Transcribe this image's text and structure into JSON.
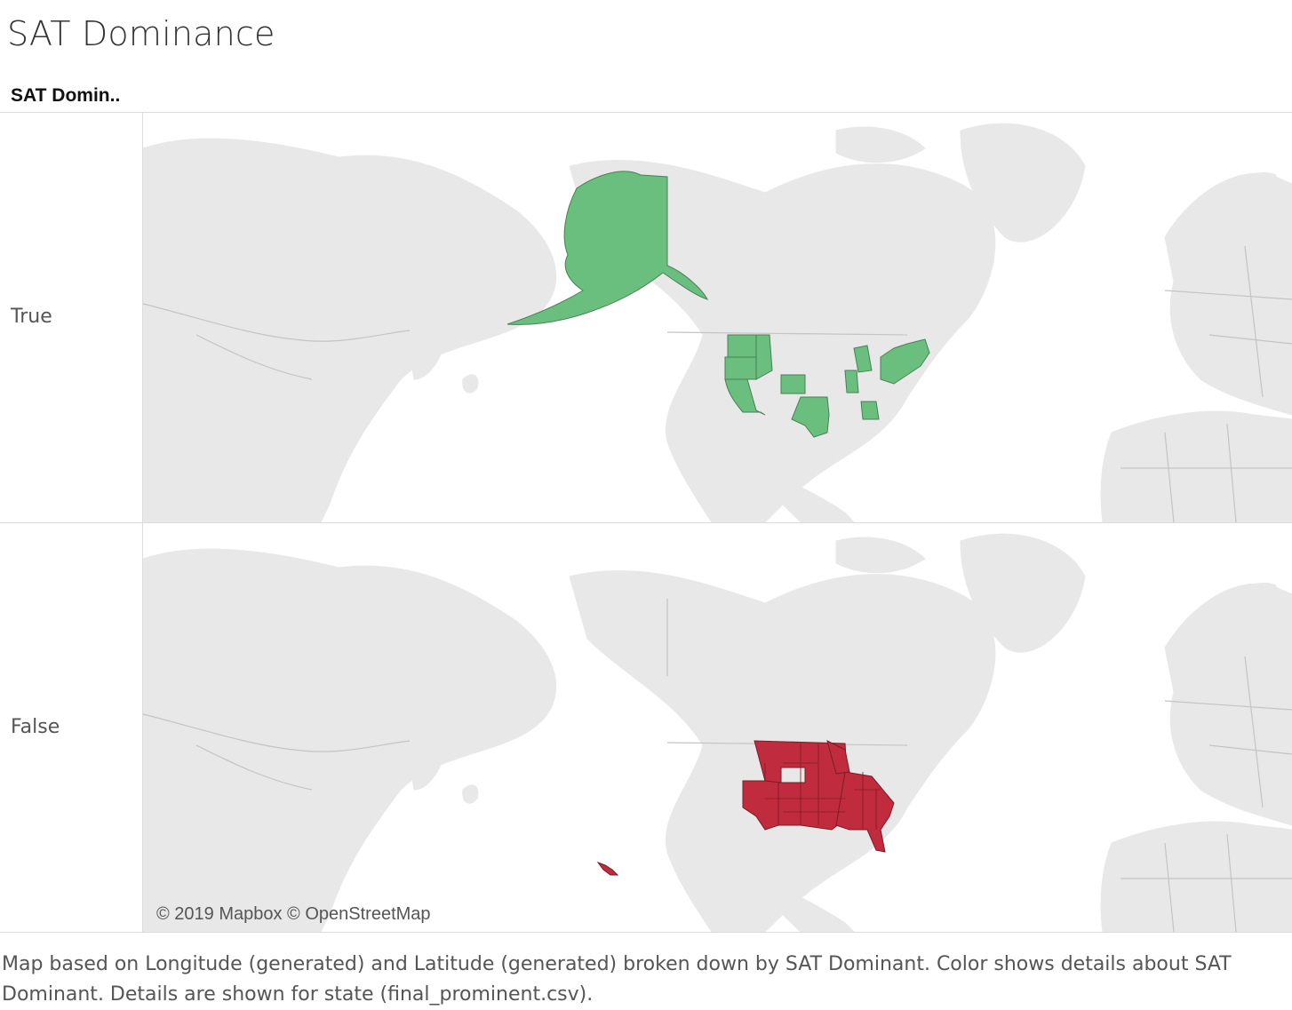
{
  "title": "SAT Dominance",
  "header": {
    "field_label": "SAT Domin.."
  },
  "rows": [
    {
      "label": "True",
      "fill": "#6bbf7e"
    },
    {
      "label": "False",
      "fill": "#c02c3d"
    }
  ],
  "map": {
    "attribution": "© 2019 Mapbox © OpenStreetMap",
    "land_color": "#e8e8e8",
    "border_color": "#bdbdbd"
  },
  "caption": "Map based on Longitude (generated) and Latitude (generated) broken down by SAT Dominant.  Color shows details about SAT Dominant.  Details are shown for state (final_prominent.csv)."
}
